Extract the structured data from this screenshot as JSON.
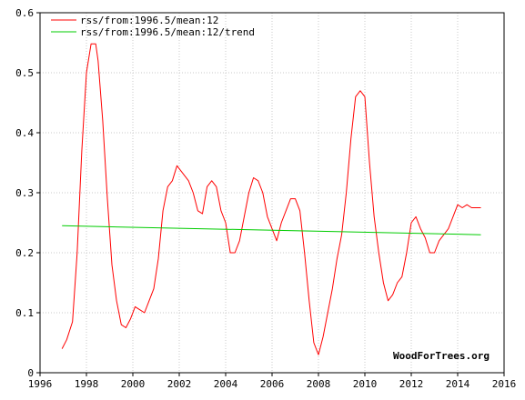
{
  "chart_data": {
    "type": "line",
    "title": "",
    "xlabel": "",
    "ylabel": "",
    "xlim": [
      1996,
      2016
    ],
    "ylim": [
      0,
      0.6
    ],
    "x_ticks": [
      "1996",
      "1998",
      "2000",
      "2002",
      "2004",
      "2006",
      "2008",
      "2010",
      "2012",
      "2014",
      "2016"
    ],
    "y_ticks": [
      "0",
      "0.1",
      "0.2",
      "0.3",
      "0.4",
      "0.5",
      "0.6"
    ],
    "grid": true,
    "legend_position": "top-left",
    "watermark": "WoodForTrees.org",
    "series": [
      {
        "name": "rss/from:1996.5/mean:12",
        "color": "#ff0000",
        "x": [
          1996.95,
          1997.15,
          1997.4,
          1997.6,
          1997.8,
          1998.0,
          1998.2,
          1998.4,
          1998.5,
          1998.7,
          1998.9,
          1999.1,
          1999.3,
          1999.5,
          1999.7,
          1999.9,
          2000.1,
          2000.3,
          2000.5,
          2000.7,
          2000.9,
          2001.1,
          2001.3,
          2001.5,
          2001.7,
          2001.9,
          2002.0,
          2002.2,
          2002.4,
          2002.6,
          2002.8,
          2003.0,
          2003.2,
          2003.4,
          2003.6,
          2003.8,
          2004.0,
          2004.2,
          2004.4,
          2004.6,
          2004.8,
          2005.0,
          2005.2,
          2005.4,
          2005.6,
          2005.8,
          2006.0,
          2006.2,
          2006.4,
          2006.6,
          2006.8,
          2007.0,
          2007.2,
          2007.4,
          2007.6,
          2007.8,
          2008.0,
          2008.2,
          2008.4,
          2008.6,
          2008.8,
          2009.0,
          2009.2,
          2009.4,
          2009.6,
          2009.8,
          2010.0,
          2010.2,
          2010.4,
          2010.6,
          2010.8,
          2011.0,
          2011.2,
          2011.4,
          2011.6,
          2011.8,
          2012.0,
          2012.2,
          2012.4,
          2012.6,
          2012.8,
          2013.0,
          2013.2,
          2013.4,
          2013.6,
          2013.8,
          2014.0,
          2014.2,
          2014.4,
          2014.6,
          2014.8,
          2015.0
        ],
        "y": [
          0.04,
          0.055,
          0.085,
          0.2,
          0.37,
          0.5,
          0.548,
          0.548,
          0.52,
          0.42,
          0.29,
          0.18,
          0.12,
          0.08,
          0.075,
          0.09,
          0.11,
          0.105,
          0.1,
          0.12,
          0.14,
          0.19,
          0.27,
          0.31,
          0.32,
          0.345,
          0.34,
          0.33,
          0.32,
          0.3,
          0.27,
          0.265,
          0.31,
          0.32,
          0.31,
          0.27,
          0.25,
          0.2,
          0.2,
          0.22,
          0.26,
          0.3,
          0.325,
          0.32,
          0.3,
          0.26,
          0.24,
          0.22,
          0.25,
          0.27,
          0.29,
          0.29,
          0.27,
          0.2,
          0.12,
          0.05,
          0.03,
          0.06,
          0.1,
          0.14,
          0.19,
          0.23,
          0.3,
          0.39,
          0.46,
          0.47,
          0.46,
          0.35,
          0.26,
          0.2,
          0.15,
          0.12,
          0.13,
          0.15,
          0.16,
          0.2,
          0.25,
          0.26,
          0.24,
          0.225,
          0.2,
          0.2,
          0.22,
          0.23,
          0.24,
          0.26,
          0.28,
          0.275,
          0.28,
          0.275,
          0.275,
          0.275
        ]
      },
      {
        "name": "rss/from:1996.5/mean:12/trend",
        "color": "#00cc00",
        "x": [
          1996.95,
          2015.0
        ],
        "y": [
          0.245,
          0.23
        ]
      }
    ]
  }
}
